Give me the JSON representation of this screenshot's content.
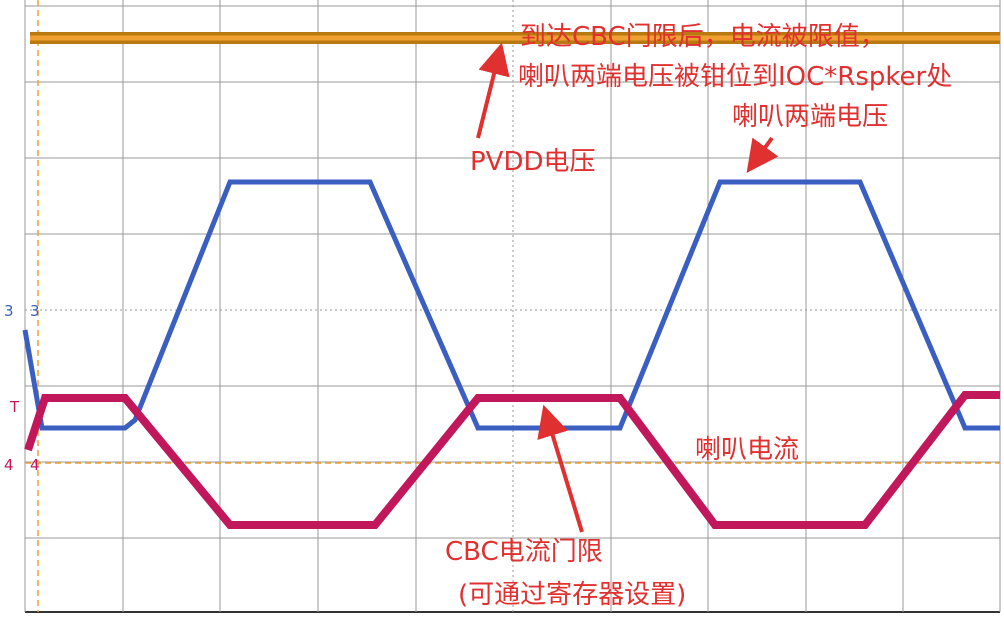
{
  "annotations": {
    "cbc_limit_top": "到达CBC门限后，电流被限值，",
    "clamp": "喇叭两端电压被钳位到IOC*Rspker处",
    "speaker_voltage": "喇叭两端电压",
    "pvdd": "PVDD电压",
    "speaker_current": "喇叭电流",
    "cbc_current_limit": "CBC电流门限",
    "register": "(可通过寄存器设置)"
  },
  "markers": {
    "ch3": "3",
    "trigger": "T",
    "ch4": "4"
  }
}
